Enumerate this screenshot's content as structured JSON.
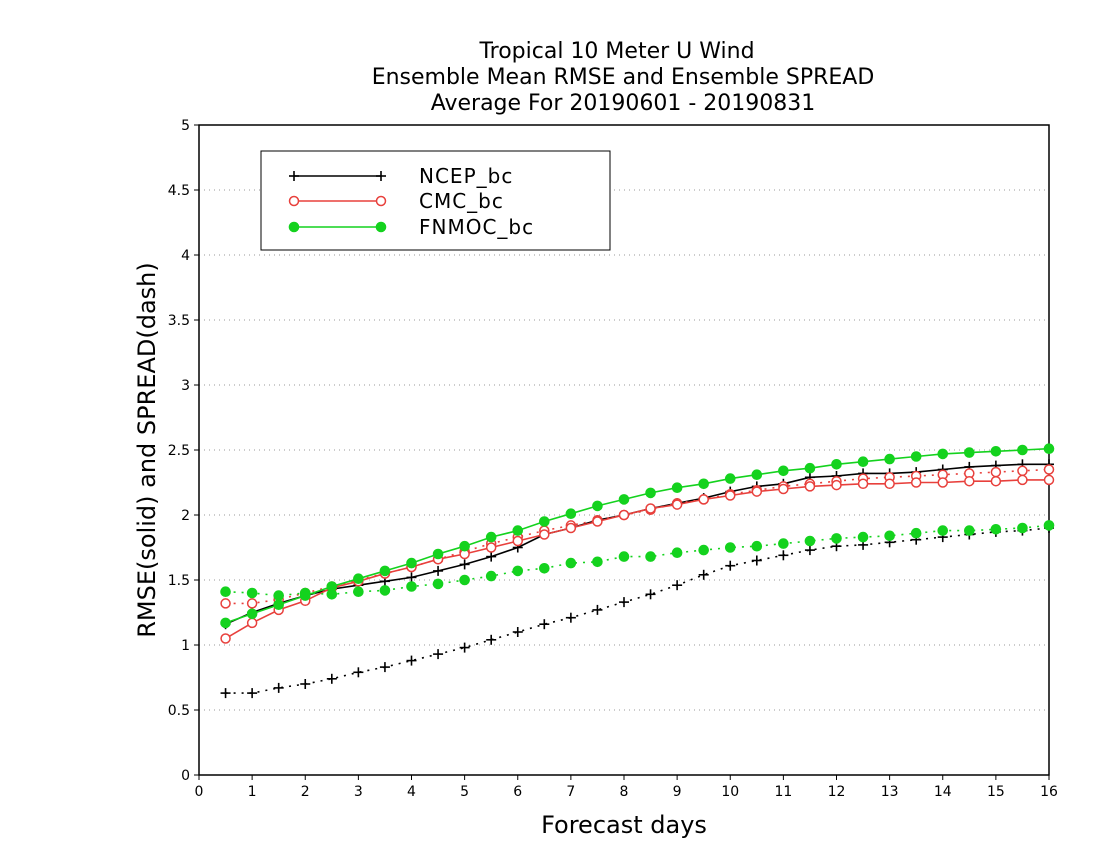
{
  "chart_data": {
    "type": "line",
    "title": [
      "Tropical 10 Meter U Wind",
      "Ensemble Mean RMSE and Ensemble SPREAD",
      "Average For 20190601 - 20190831"
    ],
    "xlabel": "Forecast days",
    "ylabel": "RMSE(solid) and SPREAD(dash)",
    "xlim": [
      0,
      16
    ],
    "ylim": [
      0,
      5
    ],
    "x_ticks": [
      "0",
      "1",
      "2",
      "3",
      "4",
      "5",
      "6",
      "7",
      "8",
      "9",
      "10",
      "11",
      "12",
      "13",
      "14",
      "15",
      "16"
    ],
    "y_ticks": [
      "0",
      "0.5",
      "1",
      "1.5",
      "2",
      "2.5",
      "3",
      "3.5",
      "4",
      "4.5",
      "5"
    ],
    "grid": "horizontal dotted",
    "legend_position": "top-left",
    "x": [
      0.5,
      1,
      1.5,
      2,
      2.5,
      3,
      3.5,
      4,
      4.5,
      5,
      5.5,
      6,
      6.5,
      7,
      7.5,
      8,
      8.5,
      9,
      9.5,
      10,
      10.5,
      11,
      11.5,
      12,
      12.5,
      13,
      13.5,
      14,
      14.5,
      15,
      15.5,
      16
    ],
    "series": [
      {
        "name": "NCEP_bc",
        "color": "#000000",
        "marker": "plus",
        "rmse": [
          1.16,
          1.25,
          1.32,
          1.38,
          1.43,
          1.46,
          1.49,
          1.52,
          1.57,
          1.62,
          1.68,
          1.75,
          1.85,
          1.9,
          1.96,
          2.0,
          2.05,
          2.09,
          2.13,
          2.18,
          2.22,
          2.24,
          2.29,
          2.3,
          2.32,
          2.32,
          2.33,
          2.35,
          2.37,
          2.38,
          2.39,
          2.39
        ],
        "spread": [
          0.63,
          0.63,
          0.67,
          0.7,
          0.74,
          0.79,
          0.83,
          0.88,
          0.93,
          0.98,
          1.04,
          1.1,
          1.16,
          1.21,
          1.27,
          1.33,
          1.39,
          1.46,
          1.54,
          1.61,
          1.65,
          1.69,
          1.73,
          1.76,
          1.77,
          1.79,
          1.81,
          1.83,
          1.85,
          1.87,
          1.88,
          1.9
        ]
      },
      {
        "name": "CMC_bc",
        "color": "#e8403c",
        "marker": "open-circle",
        "rmse": [
          1.05,
          1.17,
          1.27,
          1.34,
          1.44,
          1.49,
          1.55,
          1.6,
          1.66,
          1.7,
          1.75,
          1.8,
          1.85,
          1.9,
          1.95,
          2.0,
          2.05,
          2.08,
          2.12,
          2.15,
          2.18,
          2.2,
          2.22,
          2.23,
          2.24,
          2.24,
          2.25,
          2.25,
          2.26,
          2.26,
          2.27,
          2.27
        ],
        "spread": [
          1.32,
          1.32,
          1.35,
          1.4,
          1.45,
          1.5,
          1.55,
          1.6,
          1.66,
          1.72,
          1.78,
          1.83,
          1.88,
          1.92,
          1.96,
          2.0,
          2.04,
          2.09,
          2.12,
          2.16,
          2.19,
          2.22,
          2.24,
          2.26,
          2.28,
          2.29,
          2.3,
          2.31,
          2.32,
          2.33,
          2.34,
          2.35
        ]
      },
      {
        "name": "FNMOC_bc",
        "color": "#14d21e",
        "marker": "filled-circle",
        "rmse": [
          1.17,
          1.24,
          1.31,
          1.38,
          1.45,
          1.51,
          1.57,
          1.63,
          1.7,
          1.76,
          1.83,
          1.88,
          1.95,
          2.01,
          2.07,
          2.12,
          2.17,
          2.21,
          2.24,
          2.28,
          2.31,
          2.34,
          2.36,
          2.39,
          2.41,
          2.43,
          2.45,
          2.47,
          2.48,
          2.49,
          2.5,
          2.51
        ],
        "spread": [
          1.41,
          1.4,
          1.38,
          1.4,
          1.39,
          1.41,
          1.42,
          1.45,
          1.47,
          1.5,
          1.53,
          1.57,
          1.59,
          1.63,
          1.64,
          1.68,
          1.68,
          1.71,
          1.73,
          1.75,
          1.76,
          1.78,
          1.8,
          1.82,
          1.83,
          1.84,
          1.86,
          1.88,
          1.88,
          1.89,
          1.9,
          1.92
        ]
      }
    ]
  }
}
